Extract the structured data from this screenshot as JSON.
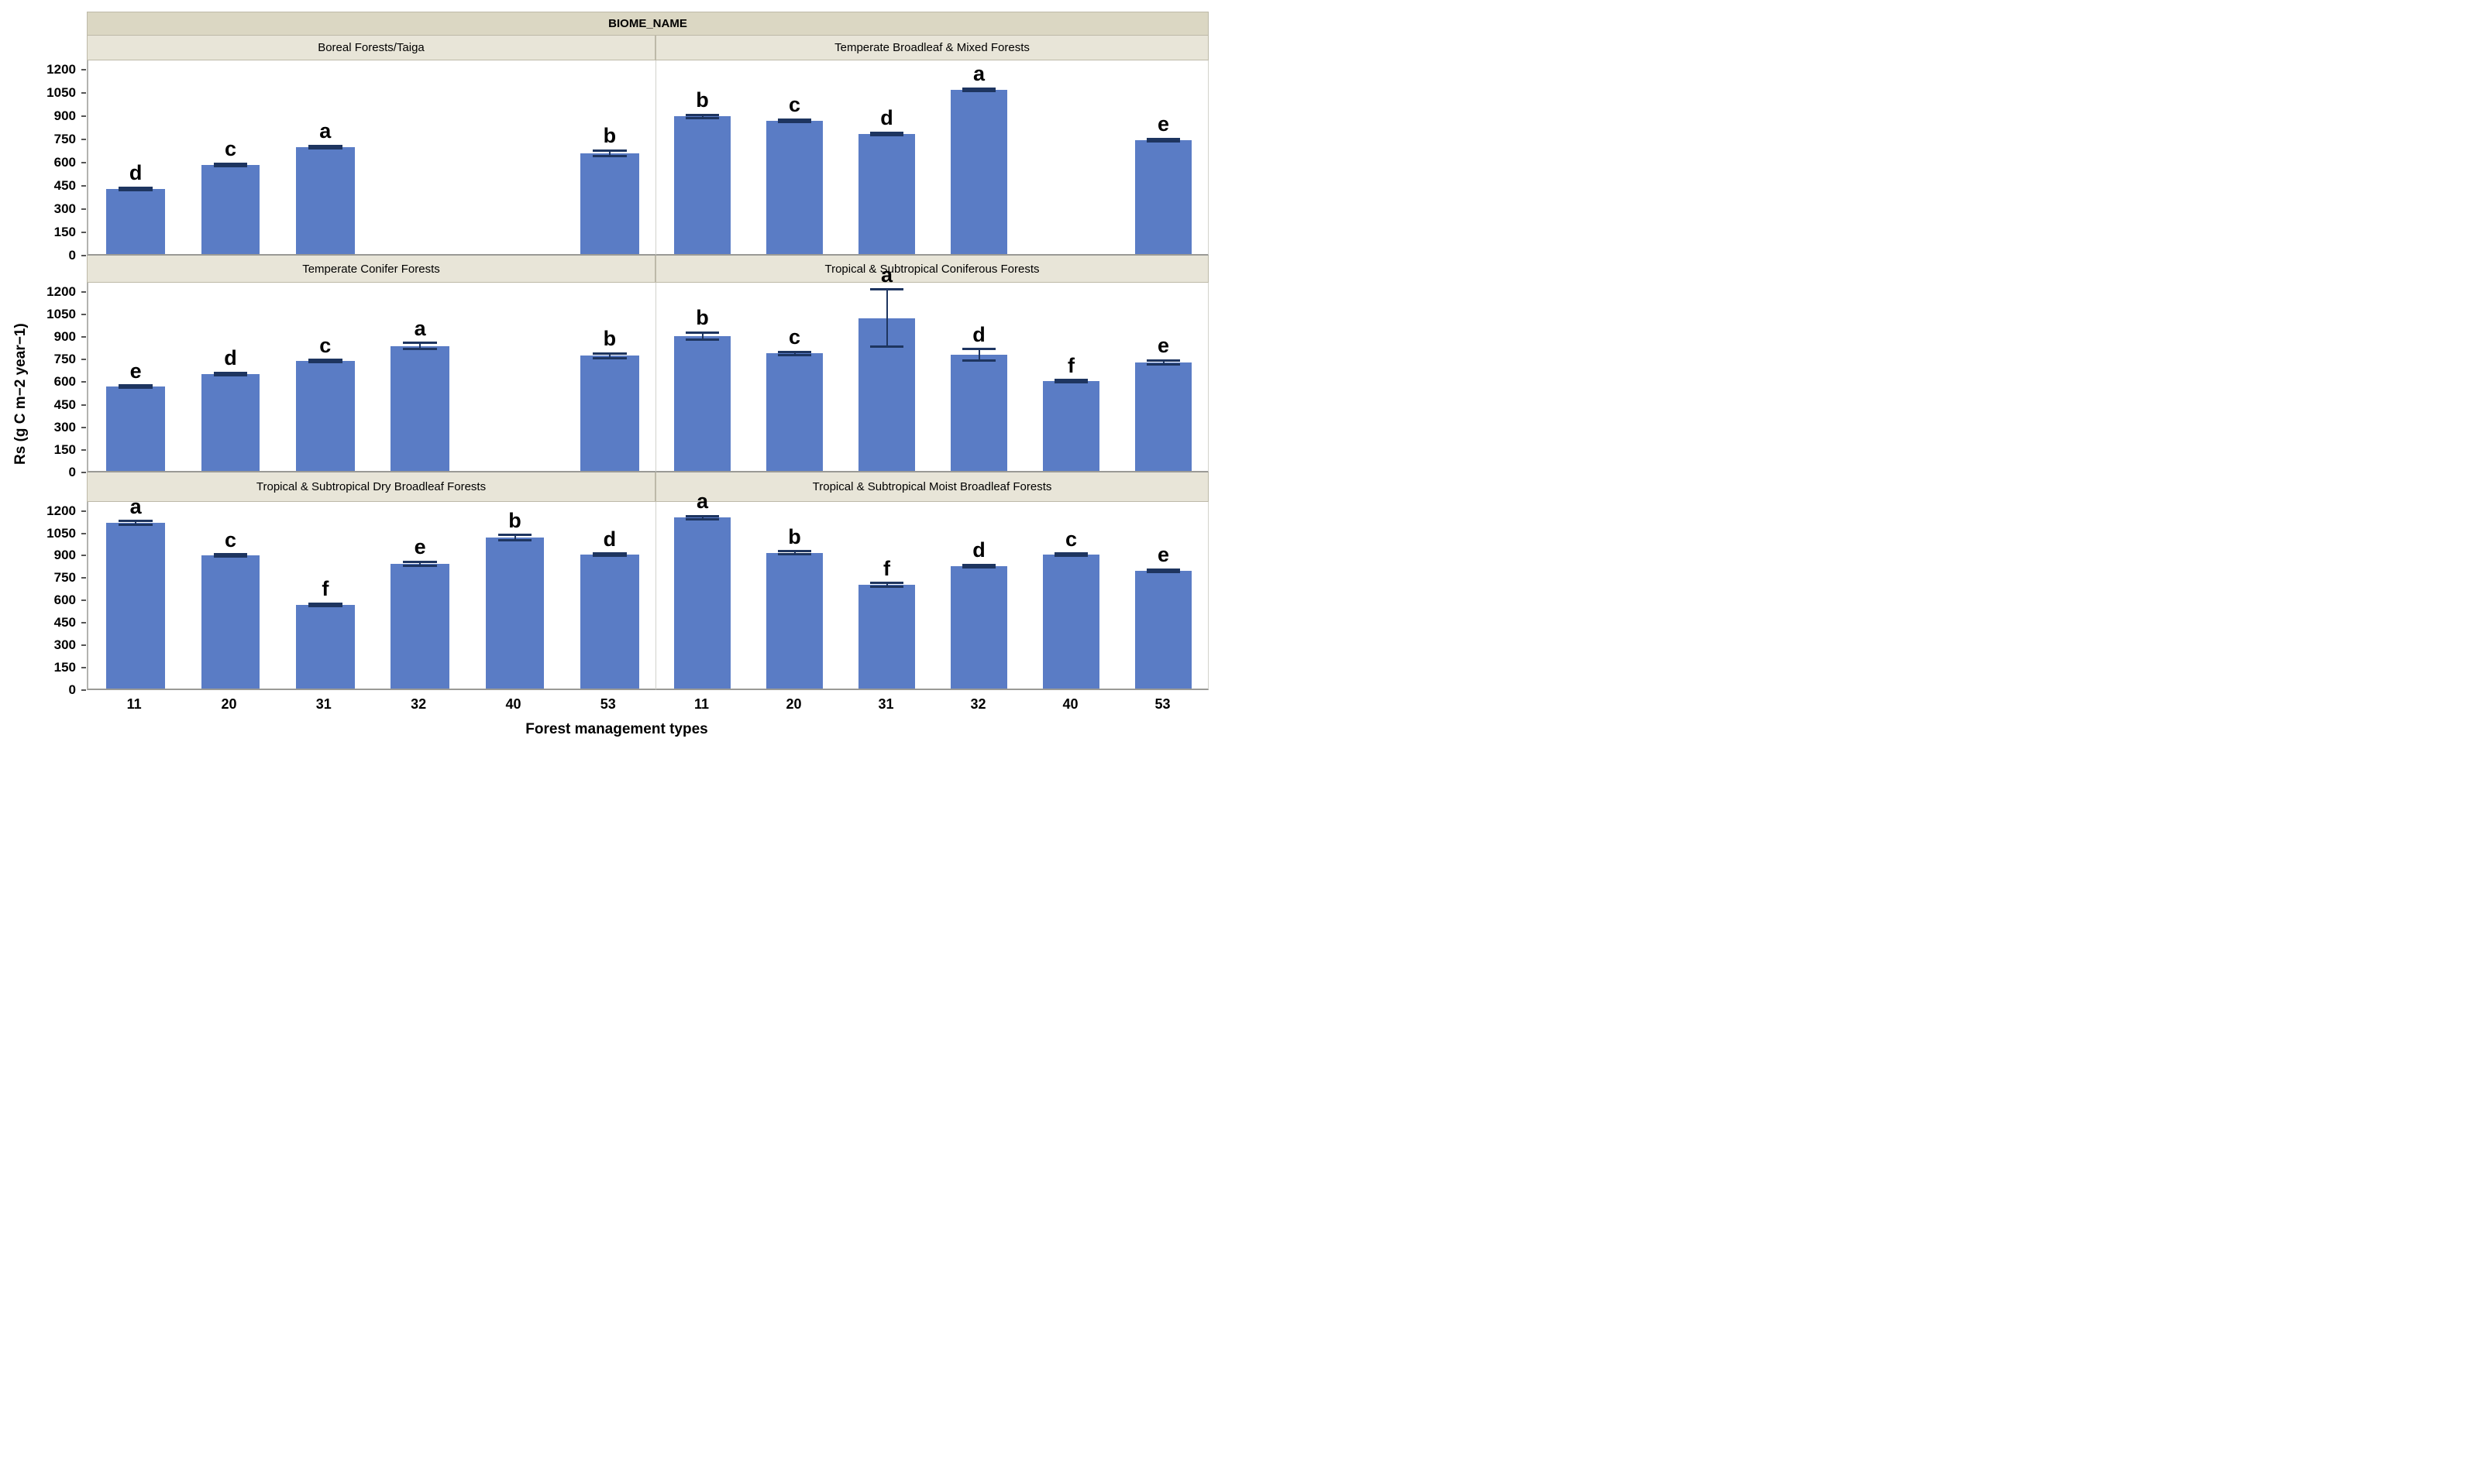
{
  "title_strip": "BIOME_NAME",
  "axes": {
    "y_label": "Rs (g C m−2 year−1)",
    "x_label": "Forest management types",
    "y_ticks": [
      0,
      150,
      300,
      450,
      600,
      750,
      900,
      1050,
      1200
    ],
    "y_max": 1260
  },
  "colors": {
    "bar": "#5a7cc5",
    "error": "#1e3560",
    "top_strip_bg": "#dbd7c3",
    "facet_strip_bg": "#e8e5d8",
    "axis_line": "#9a9a96"
  },
  "chart_data": {
    "type": "bar",
    "facet_by": "BIOME_NAME",
    "categories": [
      "11",
      "20",
      "31",
      "32",
      "40",
      "53"
    ],
    "xlabel": "Forest management types",
    "ylabel": "Rs (g C m−2 year−1)",
    "ylim": [
      0,
      1200
    ],
    "grid": false,
    "legend": false,
    "panels": [
      {
        "title": "Boreal Forests/Taiga",
        "values": [
          420,
          575,
          690,
          null,
          null,
          650
        ],
        "errors": [
          8,
          8,
          8,
          null,
          null,
          18
        ],
        "letters": [
          "d",
          "c",
          "a",
          null,
          null,
          "b"
        ]
      },
      {
        "title": "Temperate Broadleaf & Mixed Forests",
        "values": [
          890,
          860,
          775,
          1060,
          null,
          735
        ],
        "errors": [
          10,
          8,
          8,
          8,
          null,
          8
        ],
        "letters": [
          "b",
          "c",
          "d",
          "a",
          null,
          "e"
        ]
      },
      {
        "title": "Temperate Conifer Forests",
        "values": [
          560,
          645,
          730,
          830,
          null,
          765
        ],
        "errors": [
          8,
          8,
          8,
          20,
          null,
          15
        ],
        "letters": [
          "e",
          "d",
          "c",
          "a",
          null,
          "b"
        ]
      },
      {
        "title": "Tropical & Subtropical Coniferous Forests",
        "values": [
          895,
          780,
          1015,
          770,
          595,
          720
        ],
        "errors": [
          25,
          10,
          190,
          38,
          8,
          15
        ],
        "letters": [
          "b",
          "c",
          "a",
          "d",
          "f",
          "e"
        ]
      },
      {
        "title": "Tropical & Subtropical Dry Broadleaf Forests",
        "values": [
          1110,
          890,
          560,
          835,
          1010,
          895
        ],
        "errors": [
          12,
          8,
          8,
          15,
          18,
          8
        ],
        "letters": [
          "a",
          "c",
          "f",
          "e",
          "b",
          "d"
        ]
      },
      {
        "title": "Tropical & Subtropical Moist Broadleaf Forests",
        "values": [
          1145,
          910,
          695,
          820,
          895,
          790
        ],
        "errors": [
          10,
          8,
          12,
          8,
          8,
          8
        ],
        "letters": [
          "a",
          "b",
          "f",
          "d",
          "c",
          "e"
        ]
      }
    ]
  }
}
